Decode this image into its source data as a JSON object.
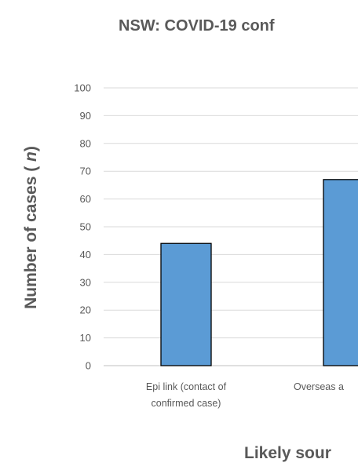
{
  "chart_data": {
    "type": "bar",
    "title": "NSW: COVID-19 conf",
    "ylabel": "Number of cases (n)",
    "xlabel": "Likely sour",
    "categories": [
      [
        "Epi link (contact of",
        "confirmed case)"
      ],
      [
        "Overseas a"
      ]
    ],
    "values": [
      44,
      67
    ],
    "ylim": [
      0,
      100
    ],
    "yticks": [
      0,
      10,
      20,
      30,
      40,
      50,
      60,
      70,
      80,
      90,
      100
    ],
    "grid": true,
    "colors": {
      "bar": "#5b9bd5",
      "text": "#595959"
    }
  }
}
